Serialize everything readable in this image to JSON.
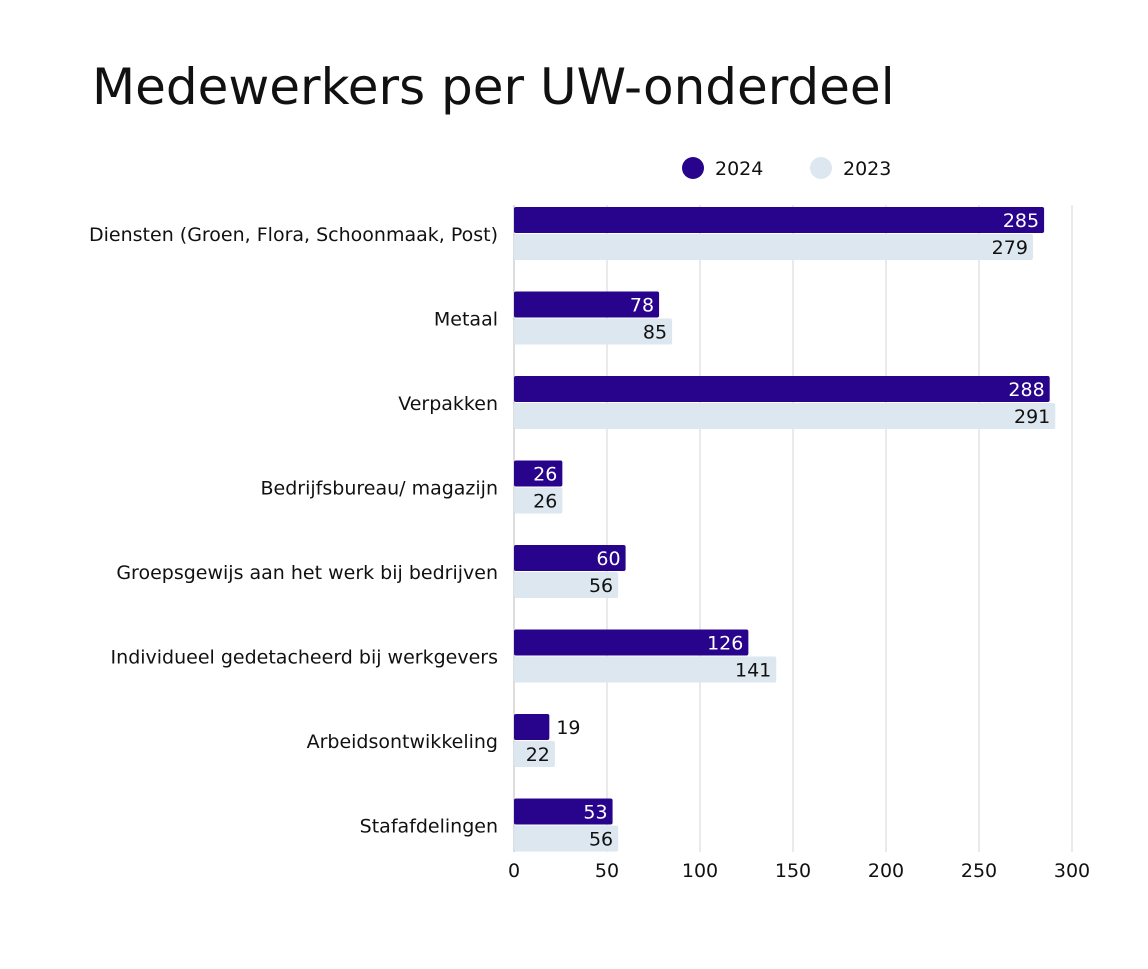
{
  "chart_data": {
    "type": "bar",
    "orientation": "horizontal",
    "title": "Medewerkers per UW-onderdeel",
    "categories": [
      "Diensten (Groen, Flora, Schoonmaak, Post)",
      "Metaal",
      "Verpakken",
      "Bedrijfsbureau/ magazijn",
      "Groepsgewijs aan het werk bij bedrijven",
      "Individueel gedetacheerd bij werkgevers",
      "Arbeidsontwikkeling",
      "Stafafdelingen"
    ],
    "series": [
      {
        "name": "2024",
        "color": "#28048c",
        "values": [
          285,
          78,
          288,
          26,
          60,
          126,
          19,
          53
        ]
      },
      {
        "name": "2023",
        "color": "#dde7f0",
        "values": [
          279,
          85,
          291,
          26,
          56,
          141,
          22,
          56
        ]
      }
    ],
    "xlim": [
      0,
      300
    ],
    "xticks": [
      0,
      50,
      100,
      150,
      200,
      250,
      300
    ],
    "grid": "vertical",
    "legend": "top",
    "data_labels": true
  }
}
